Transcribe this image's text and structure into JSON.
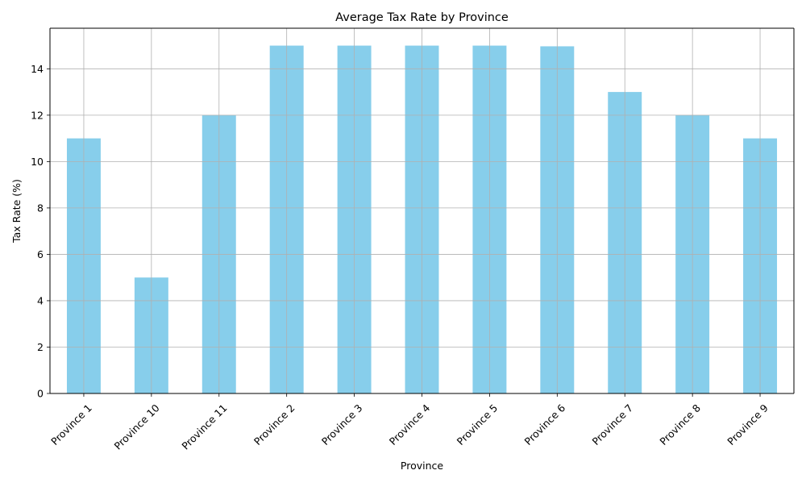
{
  "chart_data": {
    "type": "bar",
    "title": "Average Tax Rate by Province",
    "xlabel": "Province",
    "ylabel": "Tax Rate (%)",
    "categories": [
      "Province 1",
      "Province 10",
      "Province 11",
      "Province 2",
      "Province 3",
      "Province 4",
      "Province 5",
      "Province 6",
      "Province 7",
      "Province 8",
      "Province 9"
    ],
    "values": [
      11.0,
      5.0,
      12.0,
      15.0,
      15.0,
      15.0,
      15.0,
      14.97,
      13.0,
      12.0,
      11.0
    ],
    "ylim": [
      0,
      15.75
    ],
    "yticks": [
      0,
      2,
      4,
      6,
      8,
      10,
      12,
      14
    ],
    "ytick_labels": [
      "0",
      "2",
      "4",
      "6",
      "8",
      "10",
      "12",
      "14"
    ],
    "grid": true,
    "bar_color": "#87CEEB",
    "grid_color": "#b0b0b0"
  }
}
